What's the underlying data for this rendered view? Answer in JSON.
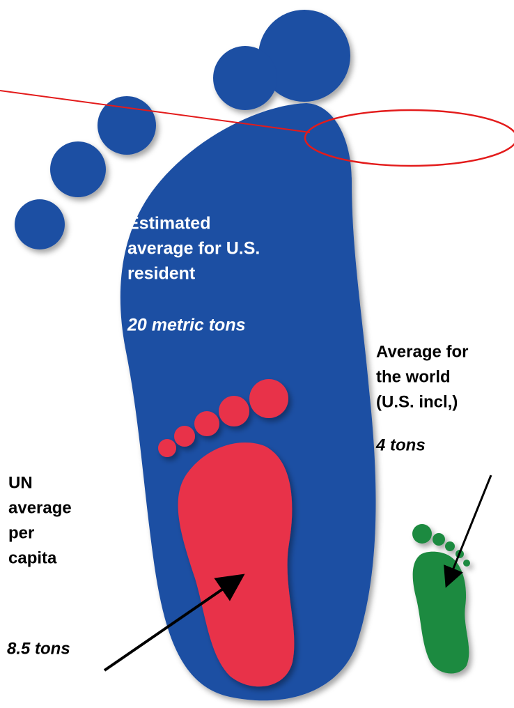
{
  "us_label": {
    "lines": [
      "Estimated",
      "average for U.S.",
      "resident"
    ],
    "amount": "20 metric tons"
  },
  "world_label": {
    "lines": [
      "Average for",
      "the world",
      "(U.S. incl,)"
    ],
    "amount": "4 tons"
  },
  "un_label": {
    "lines": [
      "UN",
      "average",
      "per",
      "capita"
    ],
    "amount": "8.5 tons"
  }
}
